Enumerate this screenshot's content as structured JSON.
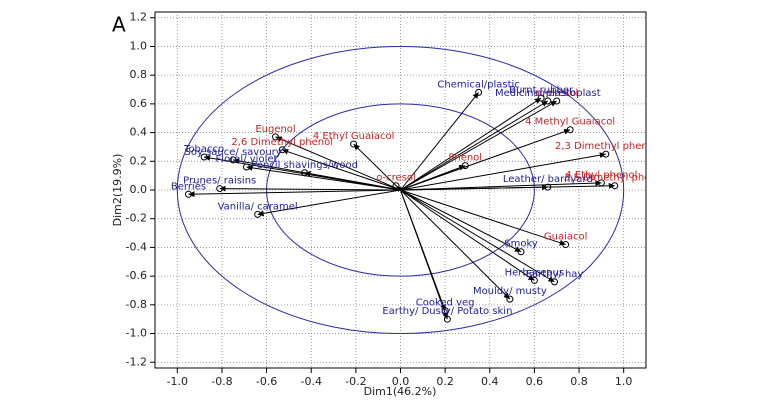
{
  "panel_label": "A",
  "chart_data": {
    "type": "biplot",
    "x_label": "Dim1(46.2%)",
    "y_label": "Dim2(19.9%)",
    "xlim": [
      -1.1,
      1.1
    ],
    "ylim": [
      -1.24,
      1.24
    ],
    "xticks": [
      {
        "value": -1.0,
        "label": "-1.0"
      },
      {
        "value": -0.8,
        "label": "-0.8"
      },
      {
        "value": -0.6,
        "label": "-0.6"
      },
      {
        "value": -0.4,
        "label": "-0.4"
      },
      {
        "value": -0.2,
        "label": "-0.2"
      },
      {
        "value": 0,
        "label": "0.0"
      },
      {
        "value": 0.2,
        "label": "0.2"
      },
      {
        "value": 0.4,
        "label": "0.4"
      },
      {
        "value": 0.6,
        "label": "0.6"
      },
      {
        "value": 0.8,
        "label": "0.8"
      },
      {
        "value": 1.0,
        "label": "1.0"
      }
    ],
    "yticks": [
      {
        "value": -1.2,
        "label": "-1.2"
      },
      {
        "value": -1.0,
        "label": "-1.0"
      },
      {
        "value": -0.8,
        "label": "-0.8"
      },
      {
        "value": -0.6,
        "label": "-0.6"
      },
      {
        "value": -0.4,
        "label": "-0.4"
      },
      {
        "value": -0.2,
        "label": "-0.2"
      },
      {
        "value": 0,
        "label": "0.0"
      },
      {
        "value": 0.2,
        "label": "0.2"
      },
      {
        "value": 0.4,
        "label": "0.4"
      },
      {
        "value": 0.6,
        "label": "0.6"
      },
      {
        "value": 0.8,
        "label": "0.8"
      },
      {
        "value": 1.0,
        "label": "1.0"
      },
      {
        "value": 1.2,
        "label": "1.2"
      }
    ],
    "grid": true,
    "circles": [
      1.0,
      0.6
    ],
    "circle_color": "#2a2aa8",
    "series": [
      {
        "color": "#d42020",
        "labels": [
          "Eugenol",
          "2,6 Dimethyl phenol",
          "4 Ethyl Guaiacol",
          "Phenol",
          "o-cresol",
          "m-cresol",
          "4 Methyl Guaiacol",
          "2,3 Dimethyl phenol",
          "4 Ethyl phenol",
          "3,5 Dimethyl phenol",
          "Guaiacol"
        ],
        "x": [
          -0.56,
          -0.53,
          -0.21,
          0.29,
          -0.02,
          0.7,
          0.76,
          0.92,
          0.9,
          0.96,
          0.74
        ],
        "values": [
          0.37,
          0.28,
          0.32,
          0.17,
          0.03,
          0.62,
          0.42,
          0.25,
          0.05,
          0.03,
          -0.38
        ]
      },
      {
        "color": "#2020a0",
        "labels": [
          "Chemical/plastic",
          "Burnt rubber",
          "Medicinal/plastoplast",
          "Tobacco",
          "Soy sauce/ savoury",
          "Floral/ violet",
          "Pencil shavings/wood",
          "Prunes/ raisins",
          "Berries",
          "Vanilla/ caramel",
          "Leather/ barnyard",
          "Smoky",
          "Herbaceous",
          "Earthy/ hay",
          "Mouldy/ musty",
          "Cooked veg",
          "Earthy/ Dusty/ Potato skin"
        ],
        "x": [
          0.35,
          0.63,
          0.66,
          -0.88,
          -0.75,
          -0.69,
          -0.43,
          -0.81,
          -0.95,
          -0.64,
          0.66,
          0.54,
          0.6,
          0.69,
          0.49,
          0.2,
          0.21
        ],
        "values": [
          0.68,
          0.64,
          0.62,
          0.23,
          0.21,
          0.16,
          0.12,
          0.01,
          -0.03,
          -0.17,
          0.02,
          -0.43,
          -0.63,
          -0.64,
          -0.76,
          -0.84,
          -0.9
        ]
      }
    ]
  }
}
